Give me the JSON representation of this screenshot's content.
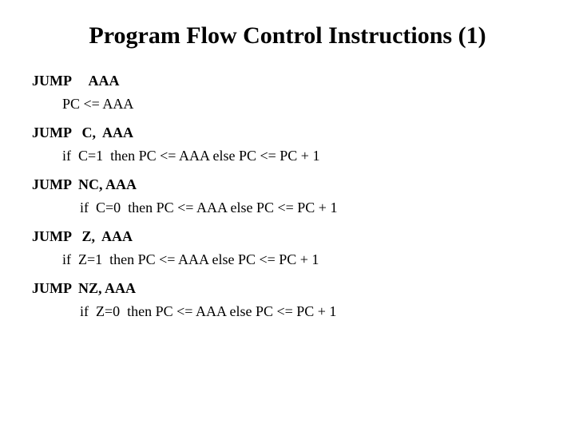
{
  "slide": {
    "title": "Program Flow Control Instructions (1)",
    "title_fontsize": 30,
    "body_fontsize": 18,
    "background_color": "#ffffff",
    "text_color": "#000000",
    "font_family": "Times New Roman",
    "instructions": [
      {
        "mnemonic": "JUMP     AAA",
        "description": "PC <= AAA",
        "desc_indent": "a"
      },
      {
        "mnemonic": "JUMP   C,  AAA",
        "description": "if  C=1  then PC <= AAA else PC <= PC + 1",
        "desc_indent": "a"
      },
      {
        "mnemonic": "JUMP  NC, AAA",
        "description": "if  C=0  then PC <= AAA else PC <= PC + 1",
        "desc_indent": "b"
      },
      {
        "mnemonic": "JUMP   Z,  AAA",
        "description": "if  Z=1  then PC <= AAA else PC <= PC + 1",
        "desc_indent": "a"
      },
      {
        "mnemonic": "JUMP  NZ, AAA",
        "description": "if  Z=0  then PC <= AAA else PC <= PC + 1",
        "desc_indent": "b"
      }
    ]
  }
}
